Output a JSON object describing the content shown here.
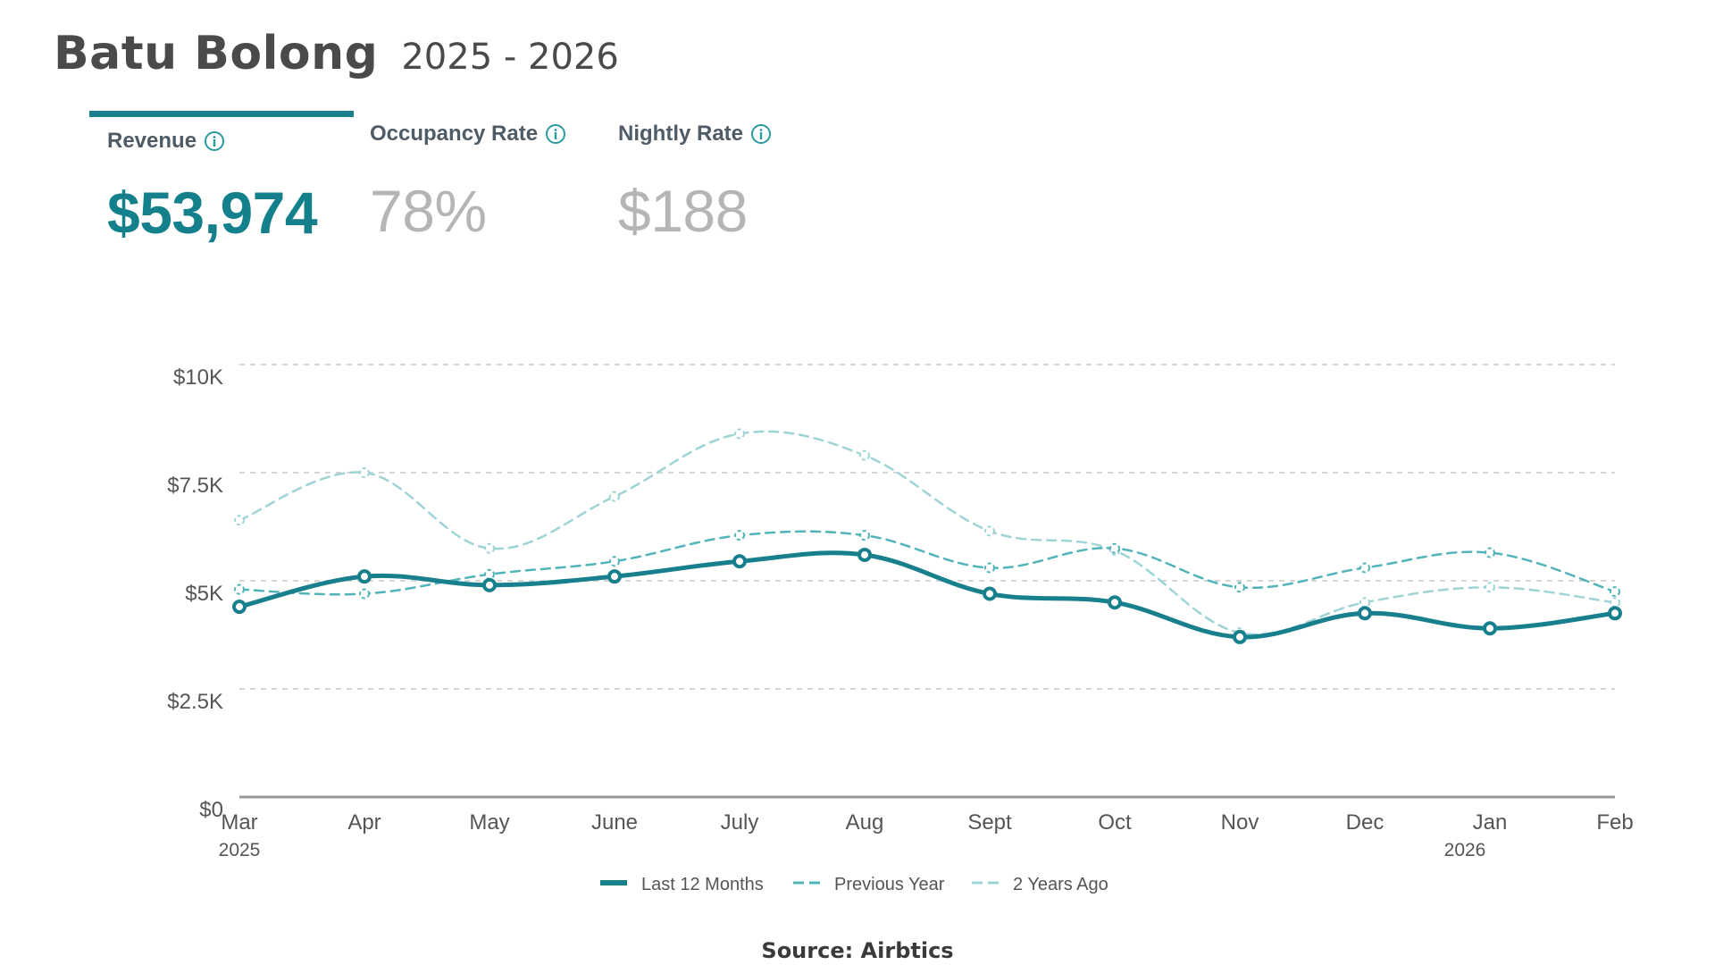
{
  "header": {
    "title": "Batu Bolong",
    "period": "2025 - 2026"
  },
  "tabs": [
    {
      "label": "Revenue",
      "value": "$53,974",
      "active": true
    },
    {
      "label": "Occupancy Rate",
      "value": "78%",
      "active": false
    },
    {
      "label": "Nightly Rate",
      "value": "$188",
      "active": false
    }
  ],
  "source": "Source: Airbtics",
  "colors": {
    "accent": "#17808c",
    "previous_year": "#52b4b8",
    "two_years_ago": "#9fd4d6",
    "grid": "#d5d5d5",
    "axis": "#999999"
  },
  "chart_data": {
    "type": "line",
    "categories": [
      "Mar",
      "Apr",
      "May",
      "June",
      "July",
      "Aug",
      "Sept",
      "Oct",
      "Nov",
      "Dec",
      "Jan",
      "Feb"
    ],
    "year_labels": [
      {
        "index": 0,
        "label": "2025"
      },
      {
        "index": 10,
        "label": "2026"
      }
    ],
    "yticks": [
      0,
      2500,
      5000,
      7500,
      10000
    ],
    "ytick_labels": [
      "$0",
      "$2.5K",
      "$5K",
      "$7.5K",
      "$10K"
    ],
    "ylim": [
      0,
      10000
    ],
    "grid": true,
    "legend_position": "bottom",
    "series": [
      {
        "name": "Last 12 Months",
        "style": "solid",
        "values": [
          4400,
          5100,
          4900,
          5100,
          5450,
          5600,
          4700,
          4500,
          3700,
          4250,
          3900,
          4250
        ]
      },
      {
        "name": "Previous Year",
        "style": "dashed",
        "values": [
          4800,
          4700,
          5150,
          5450,
          6050,
          6050,
          5300,
          5750,
          4850,
          5300,
          5650,
          4750
        ]
      },
      {
        "name": "2 Years Ago",
        "style": "dashed",
        "values": [
          6400,
          7500,
          5750,
          6950,
          8400,
          7900,
          6150,
          5700,
          3800,
          4500,
          4850,
          4500
        ]
      }
    ]
  }
}
